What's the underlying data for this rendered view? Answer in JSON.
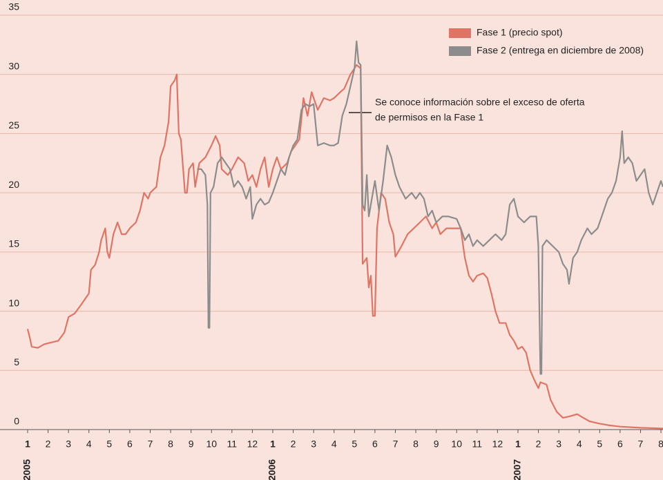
{
  "chart_data": {
    "type": "line",
    "legend": "top-right",
    "grid": true,
    "ylim": [
      0,
      35
    ],
    "yticks": [
      0,
      5,
      10,
      15,
      20,
      25,
      30,
      35
    ],
    "xlim": [
      0,
      31.1
    ],
    "xticks": [
      {
        "value": 0,
        "label": "1"
      },
      {
        "value": 1,
        "label": "2"
      },
      {
        "value": 2,
        "label": "3"
      },
      {
        "value": 3,
        "label": "4"
      },
      {
        "value": 4,
        "label": "5"
      },
      {
        "value": 5,
        "label": "6"
      },
      {
        "value": 6,
        "label": "7"
      },
      {
        "value": 7,
        "label": "8"
      },
      {
        "value": 8,
        "label": "9"
      },
      {
        "value": 9,
        "label": "10"
      },
      {
        "value": 10,
        "label": "11"
      },
      {
        "value": 11,
        "label": "12"
      },
      {
        "value": 12,
        "label": "1"
      },
      {
        "value": 13,
        "label": "2"
      },
      {
        "value": 14,
        "label": "3"
      },
      {
        "value": 15,
        "label": "4"
      },
      {
        "value": 16,
        "label": "5"
      },
      {
        "value": 17,
        "label": "6"
      },
      {
        "value": 18,
        "label": "7"
      },
      {
        "value": 19,
        "label": "8"
      },
      {
        "value": 20,
        "label": "9"
      },
      {
        "value": 21,
        "label": "10"
      },
      {
        "value": 22,
        "label": "11"
      },
      {
        "value": 23,
        "label": "12"
      },
      {
        "value": 24,
        "label": "1"
      },
      {
        "value": 25,
        "label": "2"
      },
      {
        "value": 26,
        "label": "3"
      },
      {
        "value": 27,
        "label": "4"
      },
      {
        "value": 28,
        "label": "5"
      },
      {
        "value": 29,
        "label": "6"
      },
      {
        "value": 30,
        "label": "7"
      },
      {
        "value": 31,
        "label": "8"
      }
    ],
    "year_labels": [
      {
        "value": 0,
        "label": "2005"
      },
      {
        "value": 12,
        "label": "2006"
      },
      {
        "value": 24,
        "label": "2007"
      }
    ],
    "annotation": [
      "Se conoce información sobre el exceso de oferta",
      "de permisos en la Fase 1"
    ],
    "series": [
      {
        "name": "Fase 1 (precio spot)",
        "color": "#e07464",
        "x": [
          0,
          0.1,
          0.2,
          0.5,
          0.8,
          1.0,
          1.5,
          1.8,
          2.0,
          2.3,
          2.6,
          2.8,
          3.0,
          3.1,
          3.3,
          3.5,
          3.6,
          3.8,
          3.9,
          4.0,
          4.2,
          4.4,
          4.6,
          4.8,
          5.0,
          5.3,
          5.5,
          5.7,
          5.9,
          6.0,
          6.3,
          6.5,
          6.7,
          6.9,
          7.0,
          7.2,
          7.3,
          7.4,
          7.5,
          7.7,
          7.8,
          7.9,
          8.1,
          8.2,
          8.4,
          8.7,
          9.0,
          9.2,
          9.4,
          9.5,
          9.8,
          10.0,
          10.3,
          10.6,
          10.8,
          11.0,
          11.2,
          11.4,
          11.6,
          11.8,
          12.0,
          12.2,
          12.4,
          12.7,
          12.9,
          13.1,
          13.3,
          13.5,
          13.7,
          13.9,
          14.2,
          14.5,
          14.8,
          15.0,
          15.3,
          15.5,
          15.8,
          16.0,
          16.1,
          16.3,
          16.4,
          16.6,
          16.7,
          16.8,
          16.9,
          17.0,
          17.1,
          17.3,
          17.5,
          17.7,
          17.9,
          18.0,
          18.3,
          18.6,
          18.9,
          19.2,
          19.5,
          19.8,
          20.0,
          20.2,
          20.5,
          20.8,
          21.0,
          21.2,
          21.4,
          21.6,
          21.8,
          22.0,
          22.3,
          22.5,
          22.7,
          22.9,
          23.1,
          23.4,
          23.6,
          23.8,
          24.0,
          24.2,
          24.4,
          24.6,
          24.8,
          25.0,
          25.1,
          25.4,
          25.6,
          25.9,
          26.2,
          26.5,
          26.9,
          27.2,
          27.5,
          28.0,
          28.5,
          29.0,
          30.0,
          31.0,
          31.1
        ],
        "values": [
          8.5,
          7.8,
          7,
          6.9,
          7.2,
          7.3,
          7.5,
          8.2,
          9.5,
          9.8,
          10.5,
          11,
          11.5,
          13.5,
          13.9,
          15,
          16,
          17,
          15,
          14.5,
          16.5,
          17.5,
          16.5,
          16.5,
          17,
          17.5,
          18.5,
          20,
          19.5,
          20,
          20.5,
          23,
          24,
          26,
          29,
          29.5,
          30,
          25,
          24.5,
          20,
          20,
          22,
          22.5,
          20.5,
          22.5,
          23,
          24,
          24.8,
          24,
          22,
          21.5,
          22,
          23,
          22.5,
          21,
          21.5,
          20.5,
          22,
          23,
          20.5,
          22,
          23,
          22,
          22.5,
          23.5,
          24,
          24.5,
          28,
          26.5,
          28.5,
          27,
          28,
          27.8,
          28,
          28.5,
          28.8,
          30,
          30.5,
          30.8,
          30.5,
          14,
          14.5,
          12,
          13,
          9.6,
          9.6,
          17,
          20,
          19.5,
          17.5,
          16.5,
          14.6,
          15.5,
          16.5,
          17,
          17.5,
          18,
          17,
          17.5,
          16.5,
          17,
          17,
          17,
          17,
          14.5,
          13,
          12.5,
          13,
          13.2,
          12.8,
          11.5,
          10,
          9,
          9,
          8,
          7.5,
          6.8,
          7,
          6.5,
          5,
          4.2,
          3.5,
          4,
          3.8,
          2.5,
          1.5,
          1,
          1.1,
          1.3,
          1,
          0.7,
          0.5,
          0.35,
          0.25,
          0.15,
          0.1,
          0.1
        ]
      },
      {
        "name": "Fase 2 (entrega en diciembre de 2008)",
        "color": "#8c8c8c",
        "x": [
          8.3,
          8.5,
          8.7,
          8.8,
          8.85,
          8.9,
          8.95,
          9.1,
          9.3,
          9.5,
          9.7,
          9.9,
          10.1,
          10.3,
          10.5,
          10.7,
          10.9,
          11.0,
          11.2,
          11.4,
          11.6,
          11.8,
          12.0,
          12.2,
          12.4,
          12.6,
          12.8,
          13.0,
          13.2,
          13.4,
          13.6,
          13.8,
          14.0,
          14.2,
          14.5,
          14.8,
          15.0,
          15.2,
          15.4,
          15.6,
          15.8,
          16.0,
          16.1,
          16.2,
          16.3,
          16.4,
          16.5,
          16.6,
          16.7,
          16.9,
          17.0,
          17.2,
          17.4,
          17.6,
          17.8,
          18.0,
          18.2,
          18.5,
          18.8,
          19.0,
          19.2,
          19.4,
          19.6,
          19.8,
          20.0,
          20.3,
          20.6,
          21.0,
          21.2,
          21.4,
          21.6,
          21.8,
          22.0,
          22.3,
          22.6,
          22.9,
          23.2,
          23.4,
          23.6,
          23.8,
          24.0,
          24.3,
          24.6,
          24.9,
          25.0,
          25.1,
          25.15,
          25.2,
          25.4,
          25.7,
          26.0,
          26.2,
          26.4,
          26.5,
          26.7,
          26.9,
          27.1,
          27.4,
          27.6,
          27.9,
          28.1,
          28.4,
          28.6,
          28.8,
          29.0,
          29.1,
          29.2,
          29.4,
          29.6,
          29.8,
          30.0,
          30.2,
          30.4,
          30.6,
          30.8,
          31.0,
          31.1
        ],
        "values": [
          22,
          22,
          21.5,
          19,
          8.6,
          8.6,
          20,
          20.5,
          22.5,
          23,
          22.5,
          22,
          20.5,
          21,
          20.5,
          19.5,
          20.5,
          17.8,
          19,
          19.5,
          19,
          19.2,
          20,
          21,
          22,
          21.5,
          23,
          24,
          24.5,
          27,
          27.5,
          27.3,
          27.5,
          24,
          24.2,
          24,
          24,
          24.2,
          26.5,
          27.5,
          29,
          30.5,
          32.8,
          31,
          30.8,
          19,
          18.5,
          21.5,
          18,
          20,
          21,
          18.5,
          21,
          24,
          23,
          21.5,
          20.5,
          19.5,
          20,
          19.5,
          20,
          19.5,
          18,
          18.5,
          17.5,
          18,
          18,
          17.8,
          17,
          16,
          16.5,
          15.5,
          16,
          15.5,
          16,
          16.5,
          16,
          16.5,
          19,
          19.5,
          18,
          17.5,
          18,
          18,
          15.5,
          4.7,
          4.7,
          15.5,
          16,
          15.5,
          15,
          14,
          13.5,
          12.3,
          14.5,
          15,
          16,
          17,
          16.5,
          17,
          18,
          19.5,
          20,
          21,
          23,
          25.2,
          22.5,
          23,
          22.5,
          21,
          21.5,
          22,
          20,
          19,
          20,
          21,
          20.5
        ]
      }
    ]
  }
}
